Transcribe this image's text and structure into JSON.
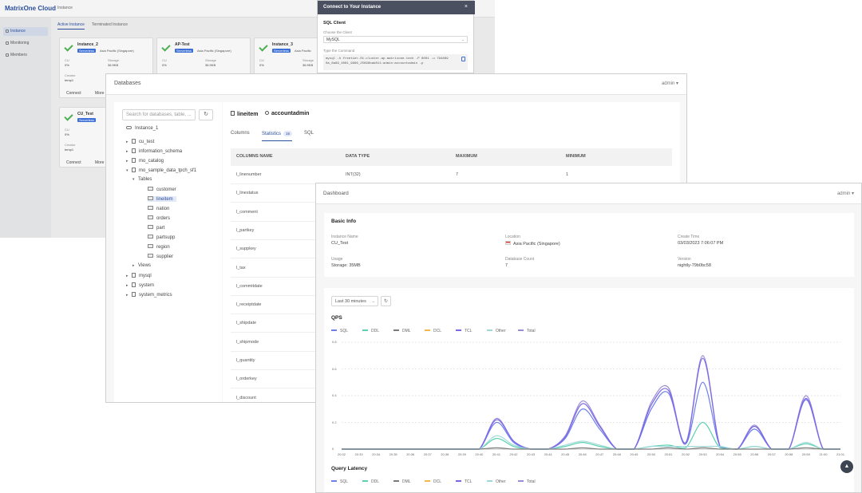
{
  "console": {
    "logo": "MatrixOne Cloud",
    "title": "Instance",
    "sidebar": [
      {
        "label": "Instance",
        "active": true
      },
      {
        "label": "Monitoring"
      },
      {
        "label": "Members"
      }
    ],
    "tabs": [
      "Active Instance",
      "Terminated Instance"
    ],
    "cards": [
      {
        "name": "Instance_2",
        "badge": "Serverless",
        "region": "Asia Pacific (Singapore)",
        "cu": "0%",
        "storage": "36.9KB",
        "creator_label": "Creator",
        "creator": "temp1",
        "cu_label": "CU",
        "storage_label": "Storage",
        "connect": "Connect",
        "more": "More"
      },
      {
        "name": "AP-Test",
        "badge": "Serverless",
        "region": "Asia Pacific (Singapore)",
        "cu": "0%",
        "storage": "36.9KB",
        "cu_label": "CU",
        "storage_label": "Storage"
      },
      {
        "name": "Instance_3",
        "badge": "Serverless",
        "region": "Asia Pacific",
        "cu": "0%",
        "storage": "36.9KB",
        "cu_label": "CU",
        "storage_label": "Storage"
      },
      {
        "name": "CU_Test",
        "badge": "Serverless",
        "cu": "0%",
        "creator_label": "Creator",
        "creator": "temp1",
        "cu_label": "CU",
        "connect": "Connect",
        "more": "More"
      }
    ]
  },
  "sql_modal": {
    "title": "Connect to Your Instance",
    "close": "×",
    "section": "SQL Client",
    "choose_label": "Choose the Client",
    "client": "MySQL",
    "command_label": "Type the Command",
    "command": "mysql -h freetier-01.cluster.ap.matrixone.tech -P 6001 -u 794869 0a_8a99_4081_9966_25699bab811:admin:accountadmin -p"
  },
  "databases": {
    "title": "Databases",
    "user": "admin",
    "search_placeholder": "Search for databases, table, ...",
    "refresh_icon": "↻",
    "instance": "Instance_1",
    "tree": [
      {
        "label": "cu_test",
        "type": "db"
      },
      {
        "label": "information_schema",
        "type": "db"
      },
      {
        "label": "mo_catalog",
        "type": "db"
      },
      {
        "label": "mo_sample_data_tpch_sf1",
        "type": "db",
        "open": true
      },
      {
        "label": "Tables",
        "type": "group"
      },
      {
        "label": "customer",
        "type": "table"
      },
      {
        "label": "lineitem",
        "type": "table",
        "selected": true
      },
      {
        "label": "nation",
        "type": "table"
      },
      {
        "label": "orders",
        "type": "table"
      },
      {
        "label": "part",
        "type": "table"
      },
      {
        "label": "partsupp",
        "type": "table"
      },
      {
        "label": "region",
        "type": "table"
      },
      {
        "label": "supplier",
        "type": "table"
      },
      {
        "label": "Views",
        "type": "group"
      },
      {
        "label": "mysql",
        "type": "db"
      },
      {
        "label": "system",
        "type": "db"
      },
      {
        "label": "system_metrics",
        "type": "db"
      }
    ],
    "table_name": "lineitem",
    "owner": "accountadmin",
    "tabs": {
      "columns": "Columns",
      "statistics": "Statistics",
      "statistics_count": "16",
      "sql": "SQL"
    },
    "headers": [
      "COLUMNS NAME",
      "DATA TYPE",
      "MAXIMUM",
      "MINIMUM"
    ],
    "rows": [
      [
        "l_linenumber",
        "INT(32)",
        "7",
        "1"
      ],
      [
        "l_linestatus"
      ],
      [
        "l_comment"
      ],
      [
        "l_partkey"
      ],
      [
        "l_suppkey"
      ],
      [
        "l_tax"
      ],
      [
        "l_commitdate"
      ],
      [
        "l_receiptdate"
      ],
      [
        "l_shipdate"
      ],
      [
        "l_shipmode"
      ],
      [
        "l_quantity"
      ],
      [
        "l_orderkey"
      ],
      [
        "l_discount"
      ]
    ]
  },
  "dashboard": {
    "title": "Dashboard",
    "user": "admin",
    "basic_info": {
      "title": "Basic Info",
      "instance_name_label": "Instance Name",
      "instance_name": "CU_Test",
      "location_label": "Location",
      "location": "Asia Pacific (Singapore)",
      "create_time_label": "Create Time",
      "create_time": "03/03/2023 7:06:07 PM",
      "usage_label": "Usage",
      "usage": "Storage: 35MB",
      "db_count_label": "Database Count",
      "db_count": "7",
      "version_label": "Version",
      "version": "nightly-79b0bc58"
    },
    "time_range": "Last 30 minutes",
    "qps_title": "QPS",
    "latency_title": "Query Latency",
    "legend": [
      "SQL",
      "DDL",
      "DML",
      "DCL",
      "TCL",
      "Other",
      "Total"
    ],
    "colors": {
      "SQL": "#6b7ff0",
      "DDL": "#5ad1b0",
      "DML": "#7a7a7a",
      "DCL": "#f2b84b",
      "TCL": "#7c66e8",
      "Other": "#9fd8d8",
      "Total": "#9b8ad6"
    }
  },
  "chart_data": {
    "type": "line",
    "title": "QPS",
    "x": [
      "20:32",
      "20:33",
      "20:34",
      "20:35",
      "20:36",
      "20:37",
      "20:38",
      "20:39",
      "20:40",
      "20:41",
      "20:42",
      "20:43",
      "20:44",
      "20:45",
      "20:46",
      "20:47",
      "20:48",
      "20:49",
      "20:50",
      "20:51",
      "20:52",
      "20:53",
      "20:54",
      "20:55",
      "20:56",
      "20:57",
      "20:58",
      "20:59",
      "21:00",
      "21:01"
    ],
    "yticks": [
      "0",
      "0.2",
      "0.4",
      "0.6",
      "0.8"
    ],
    "ylim": [
      0,
      0.8
    ],
    "series": [
      {
        "name": "Total",
        "values": [
          0,
          0,
          0,
          0,
          0,
          0,
          0,
          0,
          0,
          0.23,
          0.06,
          0,
          0,
          0.1,
          0.36,
          0.18,
          0,
          0,
          0.35,
          0.46,
          0.05,
          0.7,
          0.02,
          0,
          0.18,
          0,
          0,
          0.4,
          0,
          0
        ]
      },
      {
        "name": "SQL",
        "values": [
          0,
          0,
          0,
          0,
          0,
          0,
          0,
          0,
          0,
          0.2,
          0.05,
          0,
          0,
          0.08,
          0.3,
          0.15,
          0,
          0,
          0.3,
          0.42,
          0.04,
          0.5,
          0.02,
          0,
          0.15,
          0,
          0,
          0.37,
          0,
          0
        ]
      },
      {
        "name": "TCL",
        "values": [
          0,
          0,
          0,
          0,
          0,
          0,
          0,
          0,
          0,
          0.22,
          0.06,
          0,
          0,
          0.09,
          0.34,
          0.17,
          0,
          0,
          0.33,
          0.44,
          0.04,
          0.68,
          0.02,
          0,
          0.17,
          0,
          0,
          0.38,
          0,
          0
        ]
      },
      {
        "name": "DDL",
        "values": [
          0,
          0,
          0,
          0,
          0,
          0,
          0,
          0,
          0,
          0.08,
          0.02,
          0,
          0,
          0.02,
          0.05,
          0.02,
          0,
          0,
          0.02,
          0.03,
          0.01,
          0.2,
          0.01,
          0,
          0.02,
          0,
          0,
          0.04,
          0,
          0
        ]
      },
      {
        "name": "Other",
        "values": [
          0,
          0,
          0,
          0,
          0,
          0,
          0,
          0,
          0,
          0.1,
          0.03,
          0,
          0,
          0.03,
          0.06,
          0.03,
          0,
          0,
          0.02,
          0.02,
          0.02,
          0.02,
          0.02,
          0,
          0.02,
          0,
          0,
          0.05,
          0,
          0
        ]
      },
      {
        "name": "DML",
        "values": [
          0,
          0,
          0,
          0,
          0,
          0,
          0,
          0,
          0,
          0.01,
          0,
          0,
          0,
          0,
          0.01,
          0,
          0,
          0,
          0,
          0.01,
          0,
          0.01,
          0,
          0,
          0,
          0,
          0,
          0.01,
          0,
          0
        ]
      }
    ]
  }
}
